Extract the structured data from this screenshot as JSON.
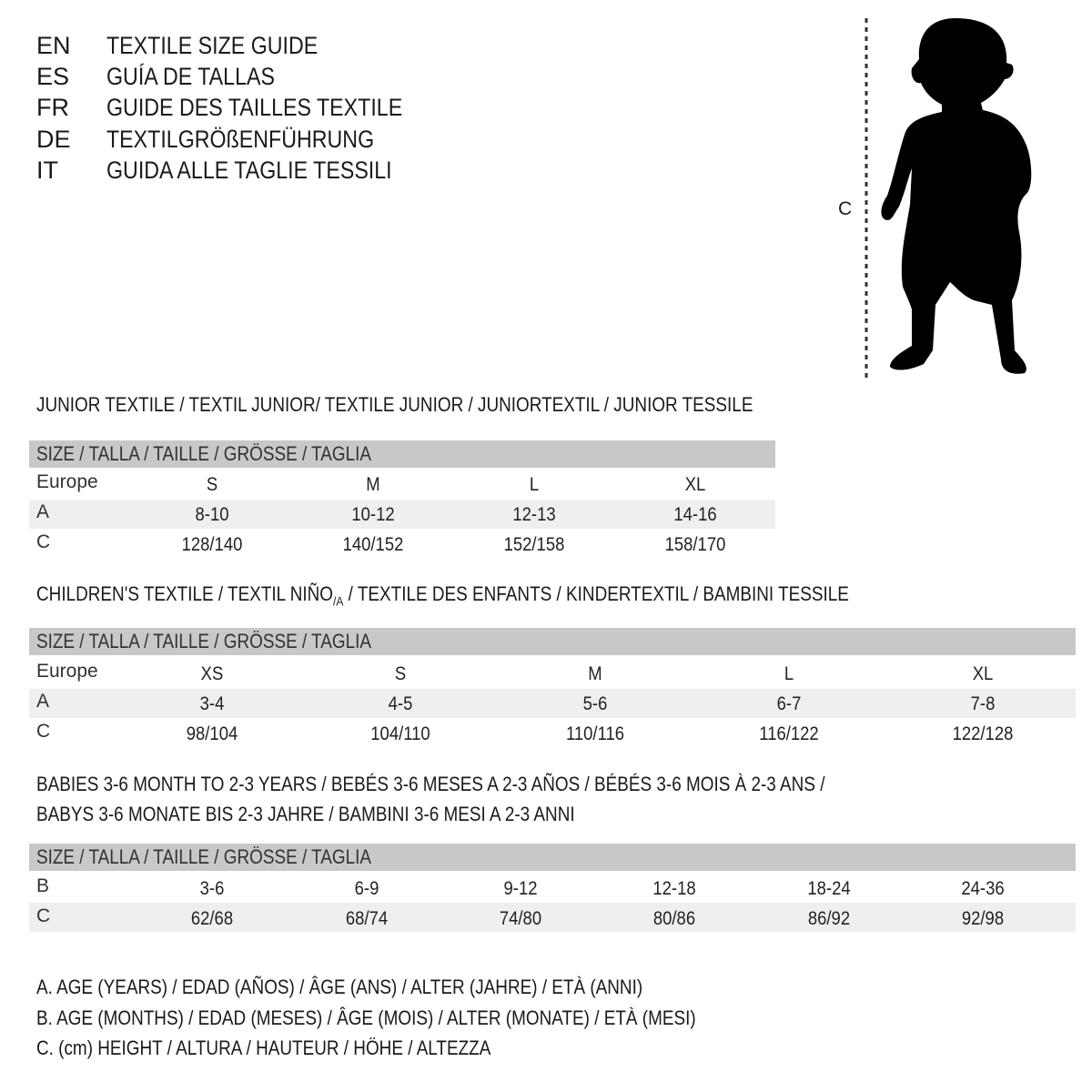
{
  "languages": [
    {
      "code": "EN",
      "text": "TEXTILE SIZE GUIDE"
    },
    {
      "code": "ES",
      "text": "GUÍA DE TALLAS"
    },
    {
      "code": "FR",
      "text": "GUIDE DES TAILLES TEXTILE"
    },
    {
      "code": "DE",
      "text": "TEXTILGRÖßENFÜHRUNG"
    },
    {
      "code": "IT",
      "text": "GUIDA ALLE TAGLIE TESSILI"
    }
  ],
  "figure": {
    "measure_label": "C",
    "icon": "child-silhouette"
  },
  "junior": {
    "title": "JUNIOR TEXTILE / TEXTIL JUNIOR/ TEXTILE JUNIOR / JUNIORTEXTIL / JUNIOR TESSILE",
    "header": "SIZE / TALLA / TAILLE / GRÖSSE / TAGLIA",
    "rows": [
      {
        "label": "Europe",
        "values": [
          "S",
          "M",
          "L",
          "XL"
        ]
      },
      {
        "label": "A",
        "values": [
          "8-10",
          "10-12",
          "12-13",
          "14-16"
        ]
      },
      {
        "label": "C",
        "values": [
          "128/140",
          "140/152",
          "152/158",
          "158/170"
        ]
      }
    ]
  },
  "children": {
    "title_pre": "CHILDREN'S TEXTILE / TEXTIL NIÑO",
    "title_sub": "/A",
    "title_post": " / TEXTILE DES ENFANTS / KINDERTEXTIL / BAMBINI TESSILE",
    "header": "SIZE / TALLA / TAILLE / GRÖSSE / TAGLIA",
    "rows": [
      {
        "label": "Europe",
        "values": [
          "XS",
          "S",
          "M",
          "L",
          "XL"
        ]
      },
      {
        "label": "A",
        "values": [
          "3-4",
          "4-5",
          "5-6",
          "6-7",
          "7-8"
        ]
      },
      {
        "label": "C",
        "values": [
          "98/104",
          "104/110",
          "110/116",
          "116/122",
          "122/128"
        ]
      }
    ]
  },
  "babies": {
    "title_line1": "BABIES 3-6 MONTH TO 2-3 YEARS / BEBÉS 3-6 MESES A 2-3 AÑOS / BÉBÉS 3-6 MOIS À 2-3 ANS /",
    "title_line2": "BABYS 3-6 MONATE BIS 2-3 JAHRE / BAMBINI 3-6 MESI A 2-3 ANNI",
    "header": "SIZE / TALLA / TAILLE / GRÖSSE / TAGLIA",
    "rows": [
      {
        "label": "B",
        "values": [
          "3-6",
          "6-9",
          "9-12",
          "12-18",
          "18-24",
          "24-36"
        ]
      },
      {
        "label": "C",
        "values": [
          "62/68",
          "68/74",
          "74/80",
          "80/86",
          "86/92",
          "92/98"
        ]
      }
    ]
  },
  "legend": [
    "A. AGE (YEARS) / EDAD (AÑOS) / ÂGE (ANS) / ALTER (JAHRE) / ETÀ (ANNI)",
    "B. AGE (MONTHS) / EDAD (MESES) / ÂGE (MOIS) / ALTER (MONATE) / ETÀ (MESI)",
    "C. (cm) HEIGHT / ALTURA / HAUTEUR / HÖHE / ALTEZZA"
  ],
  "colors": {
    "header_band": "#c8c8c8",
    "stripe": "#efefef",
    "text": "#1a1a1a"
  }
}
